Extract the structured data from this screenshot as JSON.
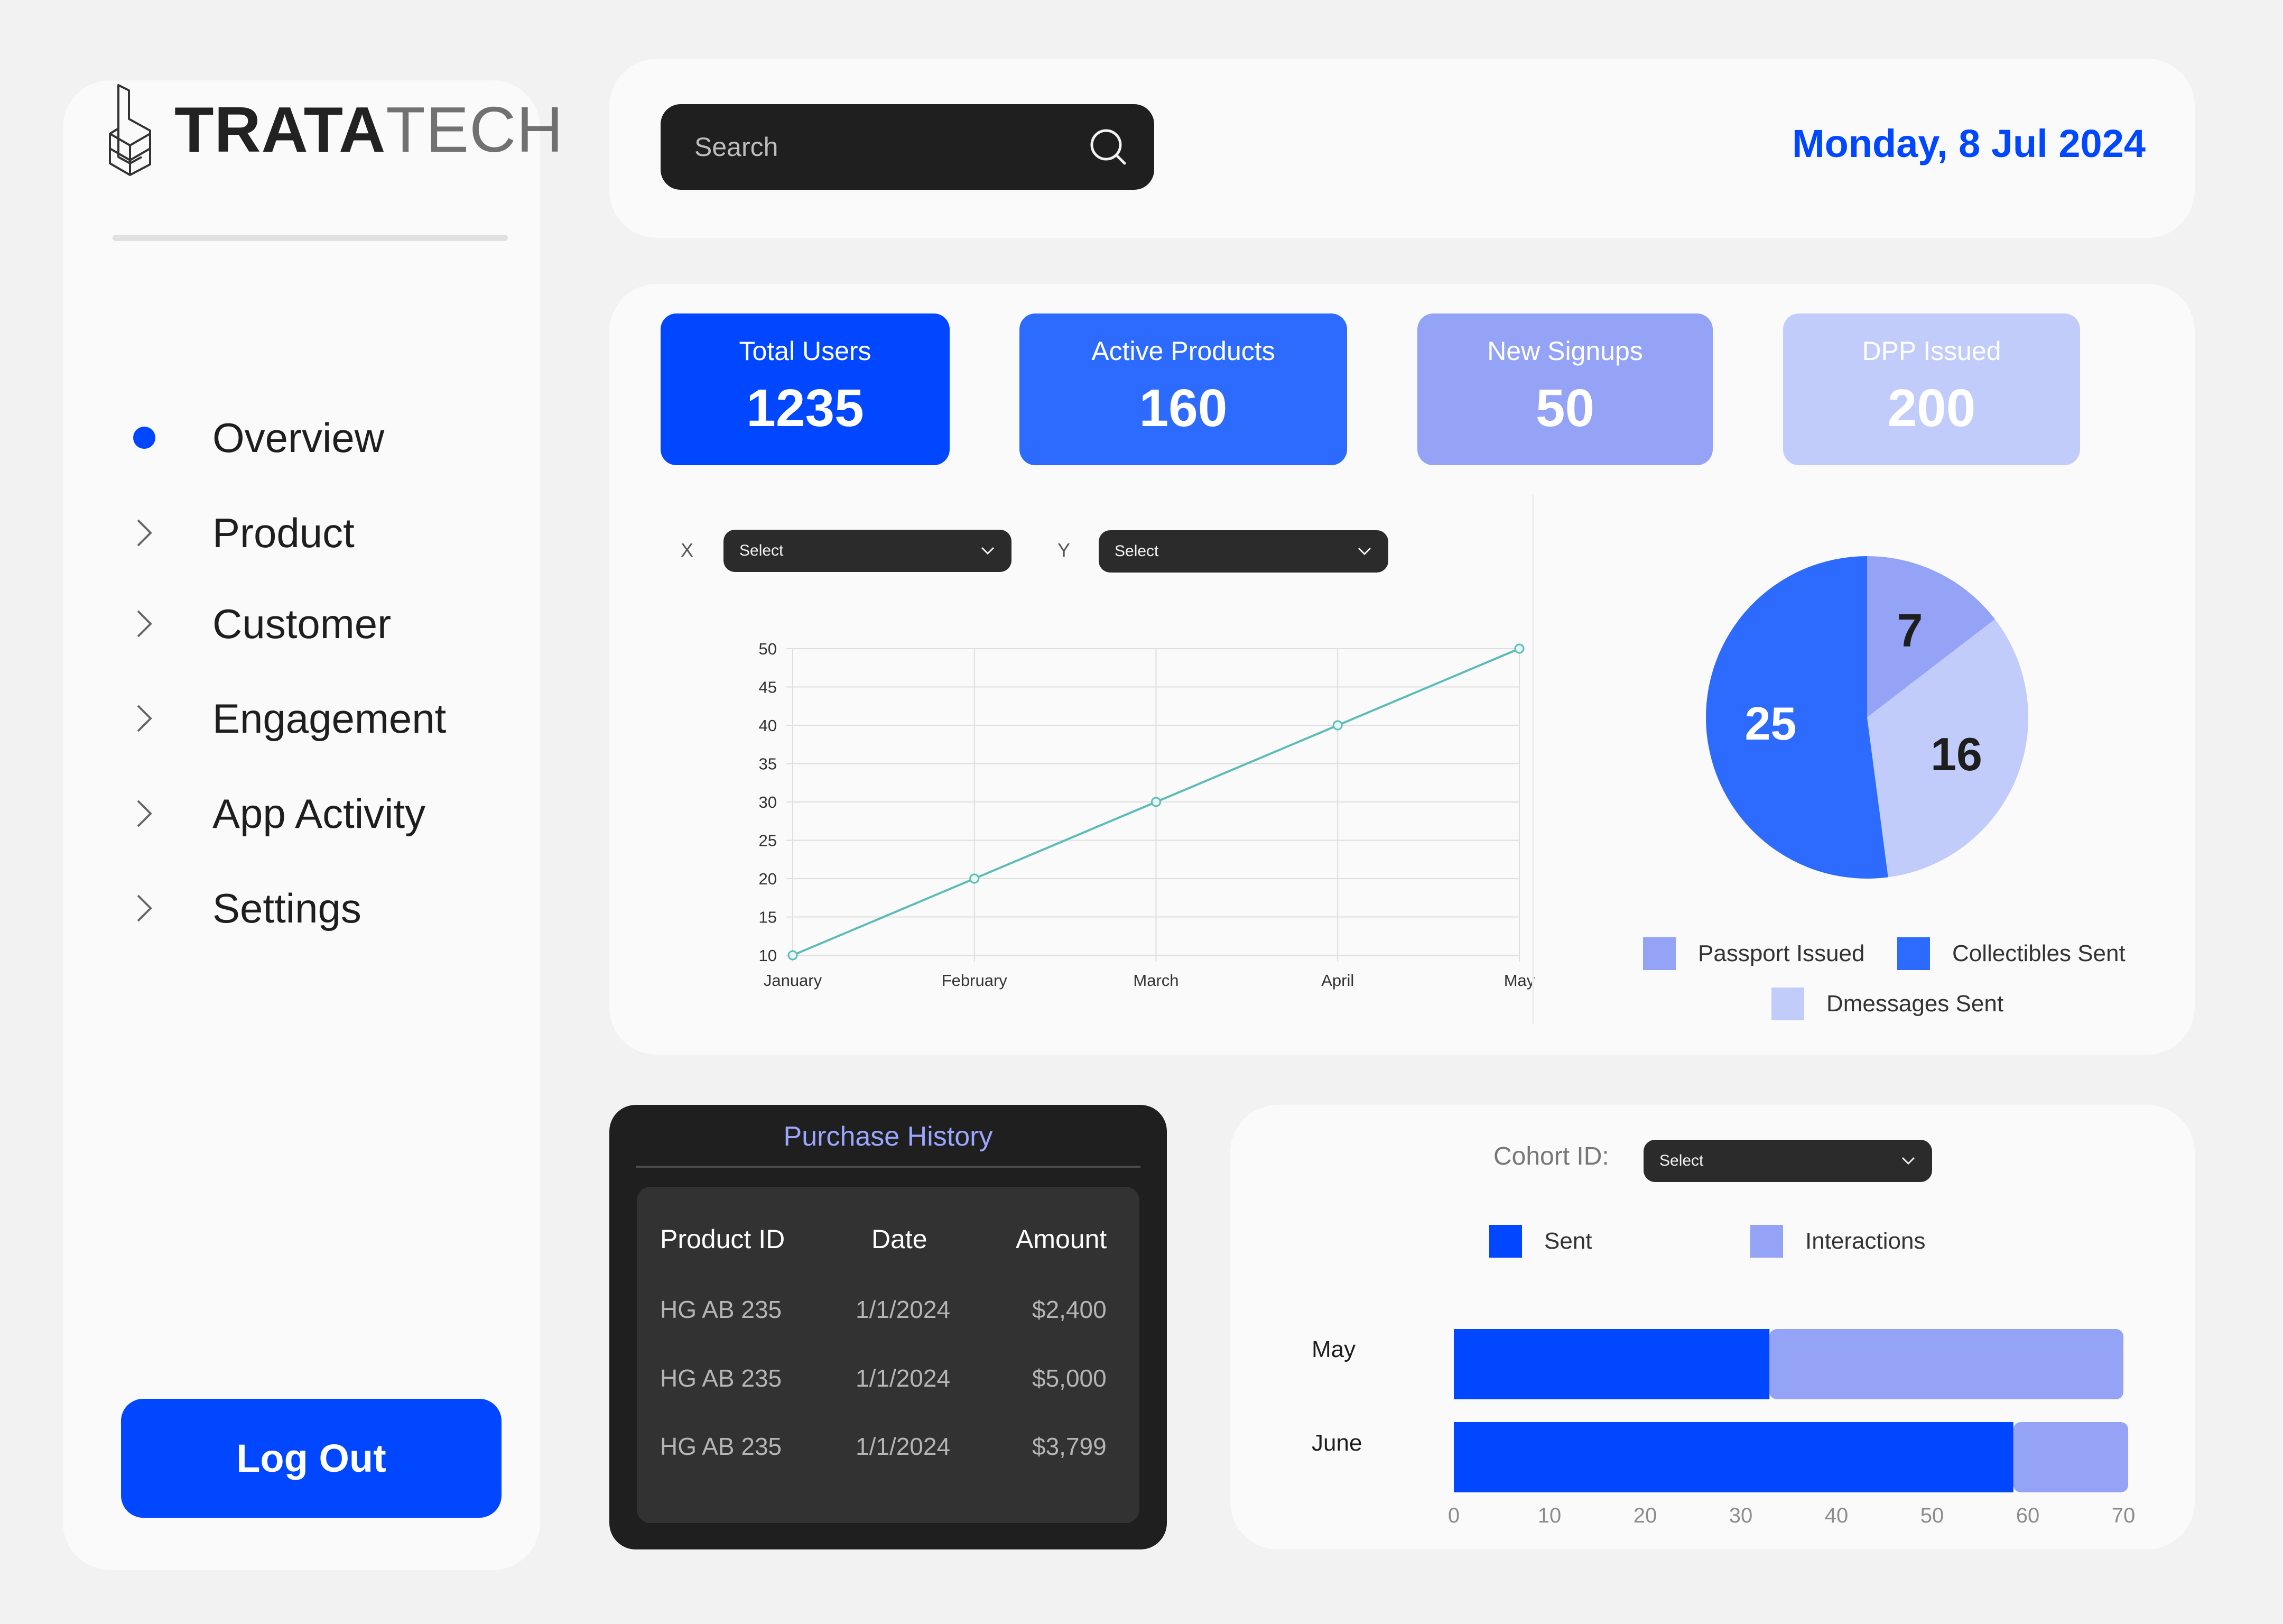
{
  "brand": {
    "logo_bold": "TRATA",
    "logo_light": "TECH"
  },
  "sidebar": {
    "items": [
      {
        "label": "Overview",
        "active": true
      },
      {
        "label": "Product"
      },
      {
        "label": "Customer"
      },
      {
        "label": "Engagement"
      },
      {
        "label": "App Activity"
      },
      {
        "label": "Settings"
      }
    ],
    "logout_label": "Log Out"
  },
  "header": {
    "search_placeholder": "Search",
    "date": "Monday, 8 Jul 2024"
  },
  "kpis": [
    {
      "label": "Total Users",
      "value": "1235",
      "color": "#0047ff"
    },
    {
      "label": "Active Products",
      "value": "160",
      "color": "#2d6bff"
    },
    {
      "label": "New Signups",
      "value": "50",
      "color": "#94a3f5"
    },
    {
      "label": "DPP Issued",
      "value": "200",
      "color": "#c2ccfb"
    }
  ],
  "line_chart_controls": {
    "x_label": "X",
    "x_select": "Select",
    "y_label": "Y",
    "y_select": "Select"
  },
  "pie_legend": [
    {
      "label": "Passport Issued",
      "color": "#94a3f5"
    },
    {
      "label": "Collectibles Sent",
      "color": "#2d6bff"
    },
    {
      "label": "Dmessages Sent",
      "color": "#c2ccfb"
    }
  ],
  "purchase_history": {
    "title": "Purchase History",
    "columns": [
      "Product ID",
      "Date",
      "Amount"
    ],
    "rows": [
      [
        "HG AB 235",
        "1/1/2024",
        "$2,400"
      ],
      [
        "HG AB 235",
        "1/1/2024",
        "$5,000"
      ],
      [
        "HG AB 235",
        "1/1/2024",
        "$3,799"
      ]
    ]
  },
  "cohort": {
    "label": "Cohort ID:",
    "select": "Select",
    "legend": [
      {
        "label": "Sent",
        "color": "#0047ff"
      },
      {
        "label": "Interactions",
        "color": "#94a3f5"
      }
    ]
  },
  "chart_data": [
    {
      "type": "line",
      "x": [
        "January",
        "February",
        "March",
        "April",
        "May"
      ],
      "series": [
        {
          "values": [
            10,
            20,
            30,
            40,
            50
          ],
          "color": "#5bbcb8"
        }
      ],
      "ylim": [
        10,
        50
      ],
      "yticks": [
        10,
        15,
        20,
        25,
        30,
        35,
        40,
        45,
        50
      ],
      "grid": true
    },
    {
      "type": "pie",
      "labels": [
        "Passport Issued",
        "Dmessages Sent",
        "Collectibles Sent"
      ],
      "values": [
        7,
        16,
        25
      ],
      "colors": [
        "#94a3f5",
        "#c2ccfb",
        "#2d6bff"
      ],
      "value_label_colors": [
        "#1e1e1e",
        "#1e1e1e",
        "#ffffff"
      ]
    },
    {
      "type": "bar",
      "orientation": "horizontal",
      "stacked": true,
      "categories": [
        "May",
        "June"
      ],
      "series": [
        {
          "name": "Sent",
          "values": [
            33,
            58.5
          ],
          "color": "#0047ff"
        },
        {
          "name": "Interactions",
          "values": [
            37,
            12
          ],
          "color": "#94a3f5"
        }
      ],
      "xlim": [
        0,
        70
      ],
      "xticks": [
        0,
        10,
        20,
        30,
        40,
        50,
        60,
        70
      ]
    }
  ]
}
